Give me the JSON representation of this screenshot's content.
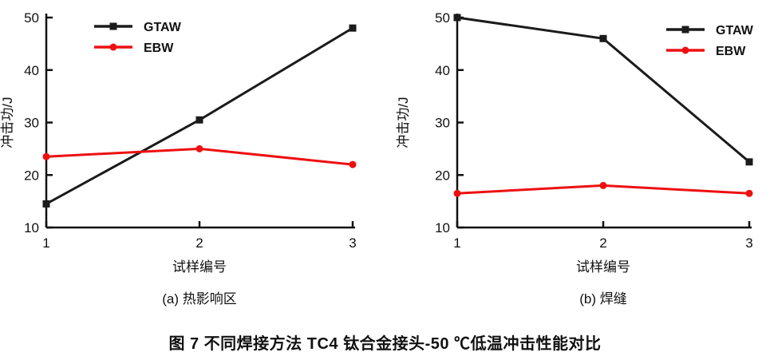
{
  "figure_caption": "图 7  不同焊接方法 TC4 钛合金接头-50 ℃低温冲击性能对比",
  "colors": {
    "gtaw_black": "#1b1b1b",
    "ebw_red": "#ee1010",
    "axis_text": "#111111",
    "background": "#ffffff"
  },
  "chart_data": [
    {
      "type": "line",
      "panel_label": "(a) 热影响区",
      "xlabel": "试样编号",
      "ylabel": "冲击功/J",
      "categories": [
        1,
        2,
        3
      ],
      "ylim": [
        10,
        50
      ],
      "yticks": [
        10,
        20,
        30,
        40,
        50
      ],
      "grid": false,
      "legend_position": "top-left",
      "series": [
        {
          "name": "GTAW",
          "color": "#1b1b1b",
          "marker": "square",
          "values": [
            14.5,
            30.5,
            48
          ]
        },
        {
          "name": "EBW",
          "color": "#ee1010",
          "marker": "circle",
          "values": [
            23.5,
            25,
            22
          ]
        }
      ]
    },
    {
      "type": "line",
      "panel_label": "(b) 焊缝",
      "xlabel": "试样编号",
      "ylabel": "冲击功/J",
      "categories": [
        1,
        2,
        3
      ],
      "ylim": [
        10,
        50
      ],
      "yticks": [
        10,
        20,
        30,
        40,
        50
      ],
      "grid": false,
      "legend_position": "top-right",
      "series": [
        {
          "name": "GTAW",
          "color": "#1b1b1b",
          "marker": "square",
          "values": [
            50,
            46,
            22.5
          ]
        },
        {
          "name": "EBW",
          "color": "#ee1010",
          "marker": "circle",
          "values": [
            16.5,
            18,
            16.5
          ]
        }
      ]
    }
  ]
}
